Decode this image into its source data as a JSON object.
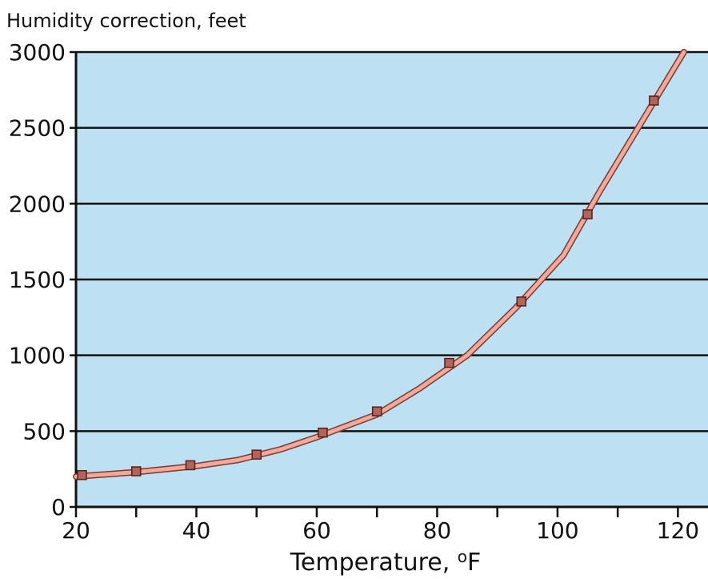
{
  "chart_data": {
    "type": "line",
    "title": "",
    "ylabel": "Humidity correction, feet",
    "xlabel_main": "Temperature, ",
    "xlabel_sup": "o",
    "xlabel_unit": "F",
    "xlim": [
      20,
      125
    ],
    "ylim": [
      0,
      3000
    ],
    "x_ticks": [
      20,
      40,
      60,
      80,
      100,
      120
    ],
    "y_ticks": [
      0,
      500,
      1000,
      1500,
      2000,
      2500,
      3000
    ],
    "x_tick_labels": [
      "20",
      "40",
      "60",
      "80",
      "100",
      "120"
    ],
    "y_tick_labels": [
      "0",
      "500",
      "1000",
      "1500",
      "2000",
      "2500",
      "3000"
    ],
    "x_minor_ticks": [
      30,
      50,
      70,
      90,
      110
    ],
    "grid": "horizontal",
    "series": [
      {
        "line": [
          [
            20,
            200
          ],
          [
            30,
            230
          ],
          [
            40,
            270
          ],
          [
            47,
            310
          ],
          [
            54,
            380
          ],
          [
            60,
            460
          ],
          [
            70,
            610
          ],
          [
            77,
            780
          ],
          [
            85,
            1000
          ],
          [
            93,
            1310
          ],
          [
            101,
            1660
          ],
          [
            107,
            2080
          ],
          [
            121,
            3000
          ]
        ],
        "markers": [
          [
            21,
            210
          ],
          [
            30,
            235
          ],
          [
            39,
            275
          ],
          [
            50,
            345
          ],
          [
            61,
            490
          ],
          [
            70,
            630
          ],
          [
            82,
            950
          ],
          [
            94,
            1355
          ],
          [
            105,
            1930
          ],
          [
            116,
            2680
          ]
        ]
      }
    ],
    "colors": {
      "plot_background": "#bde0f2",
      "line_fill": "#f2a99a",
      "line_outline": "#7a3a2e",
      "marker_fill": "#b0645a",
      "marker_outline": "#5a1e16",
      "grid": "#111111",
      "axis": "#111111"
    }
  }
}
